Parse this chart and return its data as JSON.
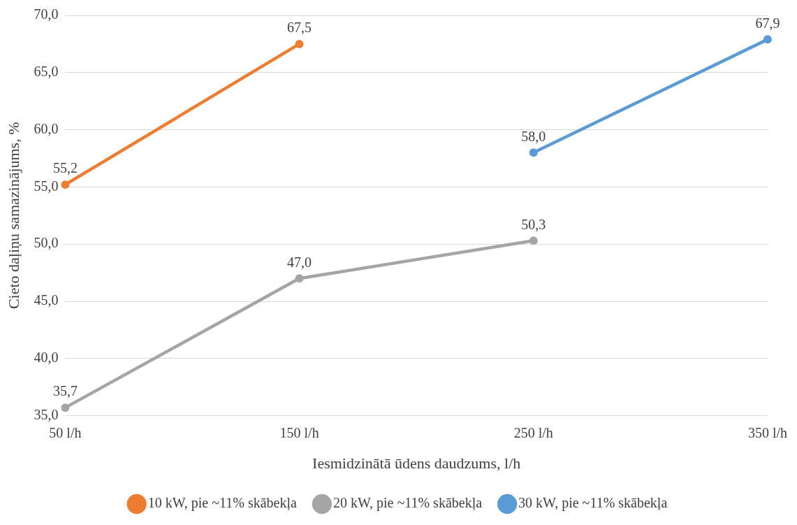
{
  "chart_data": {
    "type": "line",
    "xlabel": "Iesmidzinātā ūdens daudzums, l/h",
    "ylabel": "Cieto daļiņu samazinājums, %",
    "categories": [
      "50 l/h",
      "150 l/h",
      "250 l/h",
      "350 l/h"
    ],
    "series": [
      {
        "name": "10 kW, pie ~11% skābekļa",
        "color": "#ed7d31",
        "values": [
          55.2,
          67.5,
          null,
          null
        ],
        "value_labels": [
          "55,2",
          "67,5",
          null,
          null
        ]
      },
      {
        "name": "20 kW, pie ~11% skābekļa",
        "color": "#a5a5a5",
        "values": [
          35.7,
          47.0,
          50.3,
          null
        ],
        "value_labels": [
          "35,7",
          "47,0",
          "50,3",
          null
        ]
      },
      {
        "name": "30 kW, pie ~11% skābekļa",
        "color": "#5b9bd5",
        "values": [
          null,
          null,
          58.0,
          67.9
        ],
        "value_labels": [
          null,
          null,
          "58,0",
          "67,9"
        ]
      }
    ],
    "ylim": [
      35,
      70
    ],
    "yticks": [
      {
        "value": 35,
        "label": "35,0"
      },
      {
        "value": 40,
        "label": "40,0"
      },
      {
        "value": 45,
        "label": "45,0"
      },
      {
        "value": 50,
        "label": "50,0"
      },
      {
        "value": 55,
        "label": "55,0"
      },
      {
        "value": 60,
        "label": "60,0"
      },
      {
        "value": 65,
        "label": "65,0"
      },
      {
        "value": 70,
        "label": "70,0"
      }
    ],
    "grid": "y",
    "legend": "bottom",
    "marker": "circle",
    "line_style": "solid"
  }
}
